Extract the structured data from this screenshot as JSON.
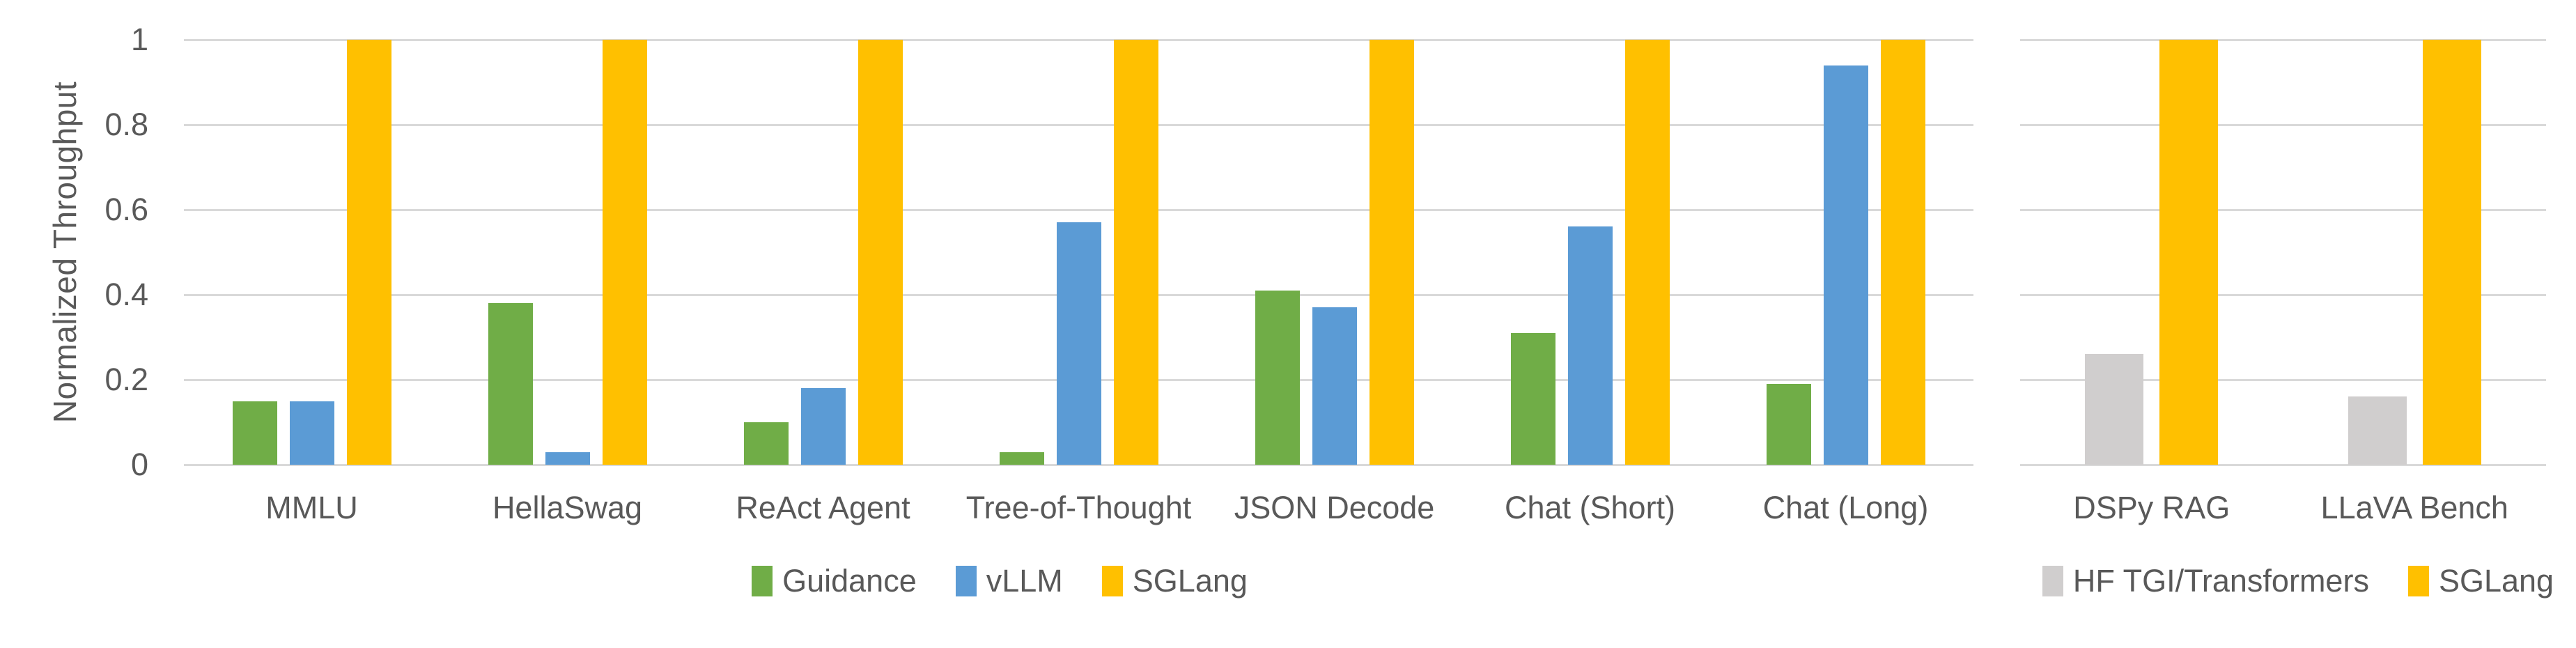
{
  "y_axis": {
    "title": "Normalized Throughput",
    "tick_labels": [
      "0",
      "0.2",
      "0.4",
      "0.6",
      "0.8",
      "1"
    ],
    "tick_values": [
      0,
      0.2,
      0.4,
      0.6,
      0.8,
      1
    ],
    "range": [
      0,
      1
    ]
  },
  "colors": {
    "guidance_green": "#70AD47",
    "vllm_blue": "#5B9BD5",
    "sglang_yellow": "#FFC000",
    "hf_gray": "#D0CECE",
    "gridline": "#D9D9D9",
    "axis_text": "#595959",
    "background": "#FFFFFF"
  },
  "chart_data": [
    {
      "type": "bar",
      "panel": "left",
      "title": "",
      "xlabel": "",
      "ylabel": "Normalized Throughput",
      "ylim": [
        0,
        1
      ],
      "grid": true,
      "legend_position": "bottom",
      "categories": [
        "MMLU",
        "HellaSwag",
        "ReAct Agent",
        "Tree-of-Thought",
        "JSON Decode",
        "Chat (Short)",
        "Chat (Long)"
      ],
      "series": [
        {
          "name": "Guidance",
          "color": "#70AD47",
          "values": [
            0.15,
            0.38,
            0.1,
            0.03,
            0.41,
            0.31,
            0.19
          ]
        },
        {
          "name": "vLLM",
          "color": "#5B9BD5",
          "values": [
            0.15,
            0.03,
            0.18,
            0.57,
            0.37,
            0.56,
            0.94
          ]
        },
        {
          "name": "SGLang",
          "color": "#FFC000",
          "values": [
            1.0,
            1.0,
            1.0,
            1.0,
            1.0,
            1.0,
            1.0
          ]
        }
      ]
    },
    {
      "type": "bar",
      "panel": "right",
      "title": "",
      "xlabel": "",
      "ylabel": "",
      "ylim": [
        0,
        1
      ],
      "grid": true,
      "legend_position": "bottom",
      "categories": [
        "DSPy RAG",
        "LLaVA Bench"
      ],
      "series": [
        {
          "name": "HF TGI/Transformers",
          "color": "#D0CECE",
          "values": [
            0.26,
            0.16
          ]
        },
        {
          "name": "SGLang",
          "color": "#FFC000",
          "values": [
            1.0,
            1.0
          ]
        }
      ]
    }
  ]
}
